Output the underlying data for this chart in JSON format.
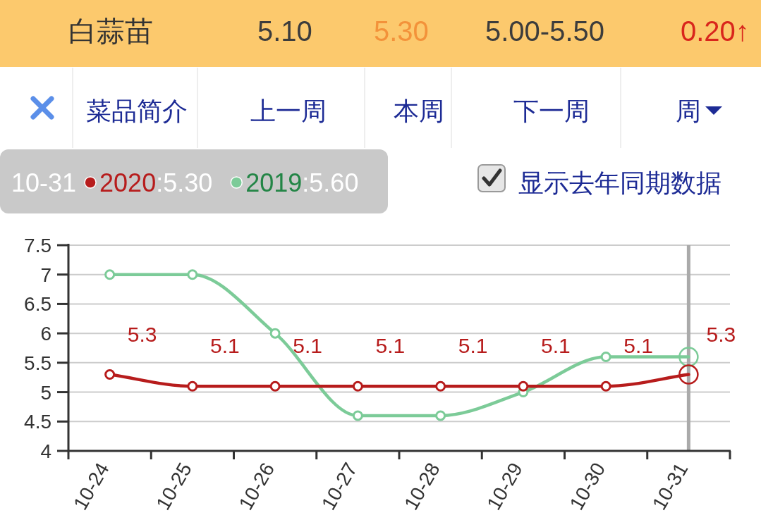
{
  "chart_data": {
    "type": "line",
    "title": "白蒜苗",
    "categories": [
      "10-24",
      "10-25",
      "10-26",
      "10-27",
      "10-28",
      "10-29",
      "10-30",
      "10-31"
    ],
    "series": [
      {
        "name": "2020",
        "color": "#b71c1c",
        "values": [
          5.3,
          5.1,
          5.1,
          5.1,
          5.1,
          5.1,
          5.1,
          5.3
        ],
        "value_labels": [
          "5.3",
          "5.1",
          "5.1",
          "5.1",
          "5.1",
          "5.1",
          "5.1",
          "5.3"
        ]
      },
      {
        "name": "2019",
        "color": "#7ccb98",
        "values": [
          7,
          7,
          6,
          4.6,
          4.6,
          5,
          5.6,
          5.6
        ]
      }
    ],
    "ylim": [
      4,
      7.5
    ],
    "yticks": [
      4,
      4.5,
      5,
      5.5,
      6,
      6.5,
      7,
      7.5
    ],
    "grid": "y",
    "legend": "top left",
    "marker": "circle",
    "ref_lines": [
      {
        "axis": "x",
        "value": "10-31",
        "color": "#aaaaaa"
      }
    ],
    "annotations": [
      "5.10",
      "5.30",
      "5.00-5.50",
      "0.20↑",
      "菜品简介",
      "上一周",
      "本周",
      "下一周",
      "周",
      "10-31",
      ":5.30",
      ":5.60",
      "显示去年同期数据"
    ]
  }
}
